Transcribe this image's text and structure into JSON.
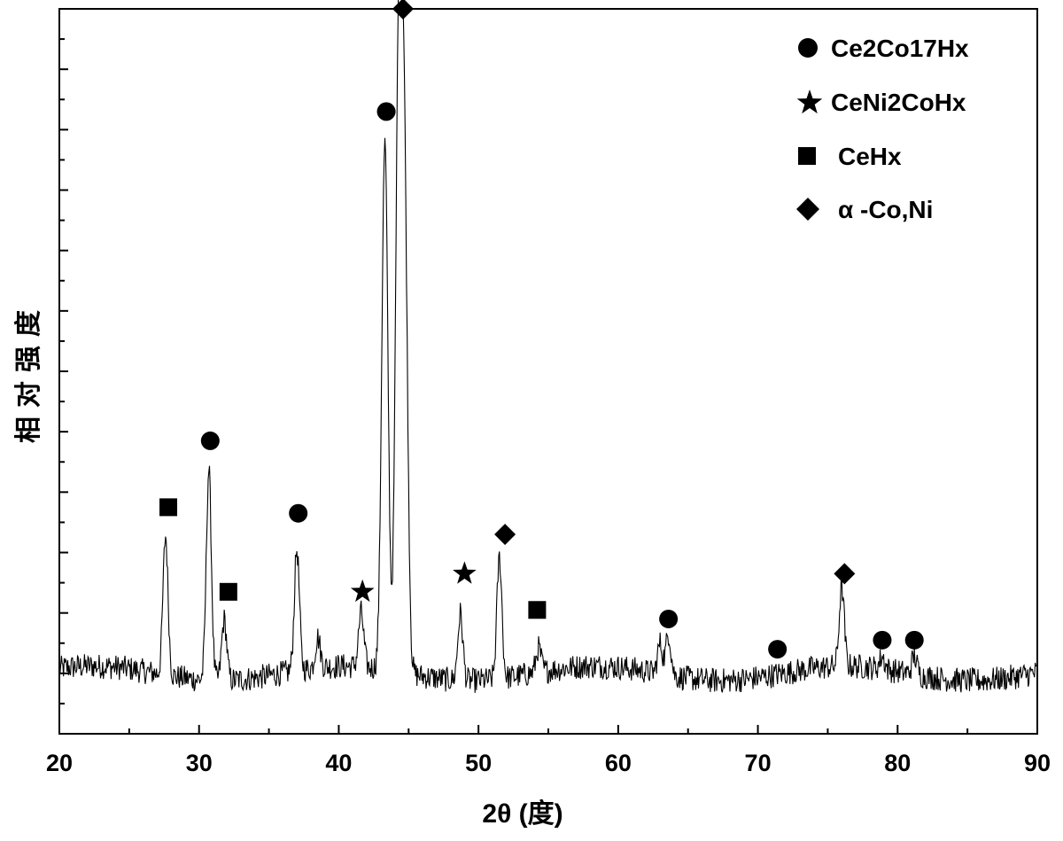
{
  "chart_data": {
    "type": "line",
    "title": "",
    "xlabel": "2θ (度)",
    "ylabel": "相对强度",
    "xlim": [
      20,
      90
    ],
    "ylim": [
      0,
      120
    ],
    "x_ticks": [
      20,
      30,
      40,
      50,
      60,
      70,
      80,
      90
    ],
    "y_tick_labels_shown": false,
    "grid": false,
    "legend_position": "top-right",
    "series": [
      {
        "color": "#000000",
        "peaks": [
          {
            "x": 27.6,
            "y": 33
          },
          {
            "x": 30.7,
            "y": 45
          },
          {
            "x": 31.8,
            "y": 20
          },
          {
            "x": 37.0,
            "y": 30
          },
          {
            "x": 38.5,
            "y": 15
          },
          {
            "x": 41.6,
            "y": 19
          },
          {
            "x": 43.3,
            "y": 97
          },
          {
            "x": 44.3,
            "y": 115
          },
          {
            "x": 44.7,
            "y": 88
          },
          {
            "x": 48.7,
            "y": 21
          },
          {
            "x": 51.5,
            "y": 30
          },
          {
            "x": 54.3,
            "y": 14
          },
          {
            "x": 63.0,
            "y": 15
          },
          {
            "x": 63.6,
            "y": 17
          },
          {
            "x": 71.0,
            "y": 10
          },
          {
            "x": 76.0,
            "y": 23
          },
          {
            "x": 78.9,
            "y": 12
          },
          {
            "x": 81.2,
            "y": 13
          }
        ],
        "baseline": 10
      }
    ],
    "legend": [
      {
        "marker": "circle",
        "label": "Ce2Co17Hx"
      },
      {
        "marker": "star",
        "label": "CeNi2CoHx"
      },
      {
        "marker": "square",
        "label": "CeHx"
      },
      {
        "marker": "diamond",
        "label": "α -Co,Ni"
      }
    ],
    "peak_markers": [
      {
        "x": 27.8,
        "y": 37.5,
        "marker": "square"
      },
      {
        "x": 30.8,
        "y": 48.5,
        "marker": "circle"
      },
      {
        "x": 32.1,
        "y": 23.5,
        "marker": "square"
      },
      {
        "x": 37.1,
        "y": 36.5,
        "marker": "circle"
      },
      {
        "x": 41.7,
        "y": 23.5,
        "marker": "star"
      },
      {
        "x": 43.4,
        "y": 103,
        "marker": "circle"
      },
      {
        "x": 44.6,
        "y": 120,
        "marker": "diamond"
      },
      {
        "x": 49.0,
        "y": 26.5,
        "marker": "star"
      },
      {
        "x": 51.9,
        "y": 33,
        "marker": "diamond"
      },
      {
        "x": 54.2,
        "y": 20.5,
        "marker": "square"
      },
      {
        "x": 63.6,
        "y": 19,
        "marker": "circle"
      },
      {
        "x": 71.4,
        "y": 14,
        "marker": "circle"
      },
      {
        "x": 76.2,
        "y": 26.5,
        "marker": "diamond"
      },
      {
        "x": 78.9,
        "y": 15.5,
        "marker": "circle"
      },
      {
        "x": 81.2,
        "y": 15.5,
        "marker": "circle"
      }
    ]
  }
}
